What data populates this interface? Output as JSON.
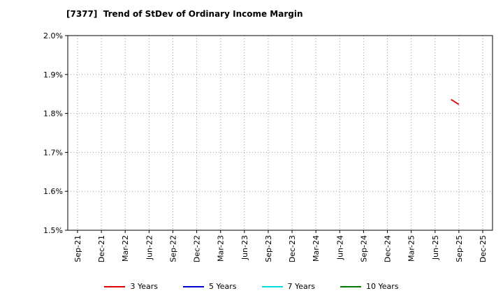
{
  "chart_data": {
    "type": "line",
    "title": "[7377]  Trend of StDev of Ordinary Income Margin",
    "x_labels": [
      "Sep-21",
      "Dec-21",
      "Mar-22",
      "Jun-22",
      "Sep-22",
      "Dec-22",
      "Mar-23",
      "Jun-23",
      "Sep-23",
      "Dec-23",
      "Mar-24",
      "Jun-24",
      "Sep-24",
      "Dec-24",
      "Mar-25",
      "Jun-25",
      "Sep-25",
      "Dec-25"
    ],
    "ylim": [
      1.5,
      2.0
    ],
    "yticks": [
      {
        "value": 1.5,
        "label": "1.5%"
      },
      {
        "value": 1.6,
        "label": "1.6%"
      },
      {
        "value": 1.7,
        "label": "1.7%"
      },
      {
        "value": 1.8,
        "label": "1.8%"
      },
      {
        "value": 1.9,
        "label": "1.9%"
      },
      {
        "value": 2.0,
        "label": "2.0%"
      }
    ],
    "grid": "dotted-both-axes",
    "legend_position": "bottom",
    "series": [
      {
        "name": "3 Years",
        "color": "#dd0000",
        "points": [
          {
            "x": 15.67,
            "y": 1.836
          },
          {
            "x": 16,
            "y": 1.823
          }
        ]
      },
      {
        "name": "5 Years",
        "color": "#0000cc",
        "points": []
      },
      {
        "name": "7 Years",
        "color": "#00dddd",
        "points": []
      },
      {
        "name": "10 Years",
        "color": "#007700",
        "points": []
      }
    ]
  }
}
